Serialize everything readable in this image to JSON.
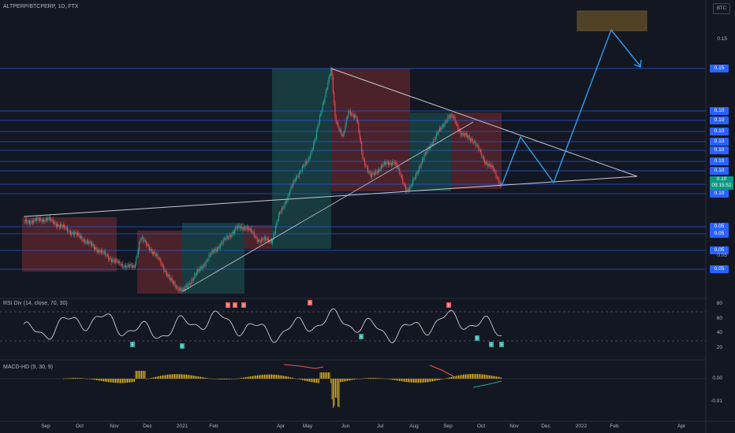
{
  "header": {
    "symbol": "ALTPERP/BTCPERP, 1D, FTX",
    "currency_button": "BTC"
  },
  "price_axis": {
    "tags": [
      {
        "label": "0.15"
      },
      {
        "label": "0.10"
      },
      {
        "label": "0.10"
      },
      {
        "label": "0.10"
      },
      {
        "label": "0.10"
      },
      {
        "label": "0.10"
      },
      {
        "label": "0.10"
      },
      {
        "label": "0.10"
      },
      {
        "label": "0.10"
      },
      {
        "label": "0.05"
      },
      {
        "label": "0.05"
      },
      {
        "label": "0.05"
      },
      {
        "label": "0.05"
      }
    ],
    "plain": [
      {
        "label": "0.15"
      },
      {
        "label": "0.05"
      }
    ],
    "current": {
      "price": "0.10",
      "countdown": "09:15:52"
    }
  },
  "time_axis": [
    "Sep",
    "Oct",
    "Nov",
    "Dec",
    "2021",
    "Feb",
    "Apr",
    "May",
    "Jun",
    "Jul",
    "Aug",
    "Sep",
    "Oct",
    "Nov",
    "Dec",
    "2022",
    "Feb",
    "Apr"
  ],
  "rsi": {
    "title": "RSI Div (14, close, 70, 30)",
    "ticks": [
      "80",
      "60",
      "40",
      "20"
    ],
    "bear_labels": [
      "B",
      "B",
      "B",
      "B",
      "B",
      "B"
    ],
    "bull_labels": [
      "B",
      "B",
      "B",
      "B",
      "B",
      "B"
    ]
  },
  "macd": {
    "title": "MACD-HD (9, 30, 9)",
    "ticks": [
      "0.00",
      "-0.01"
    ]
  },
  "colors": {
    "bg": "#131722",
    "up": "#26a69a",
    "down": "#ef5350",
    "level": "#2962ff",
    "projection": "#2f9cf0",
    "target": "#a0762a",
    "trend": "#c8c8d0"
  }
}
